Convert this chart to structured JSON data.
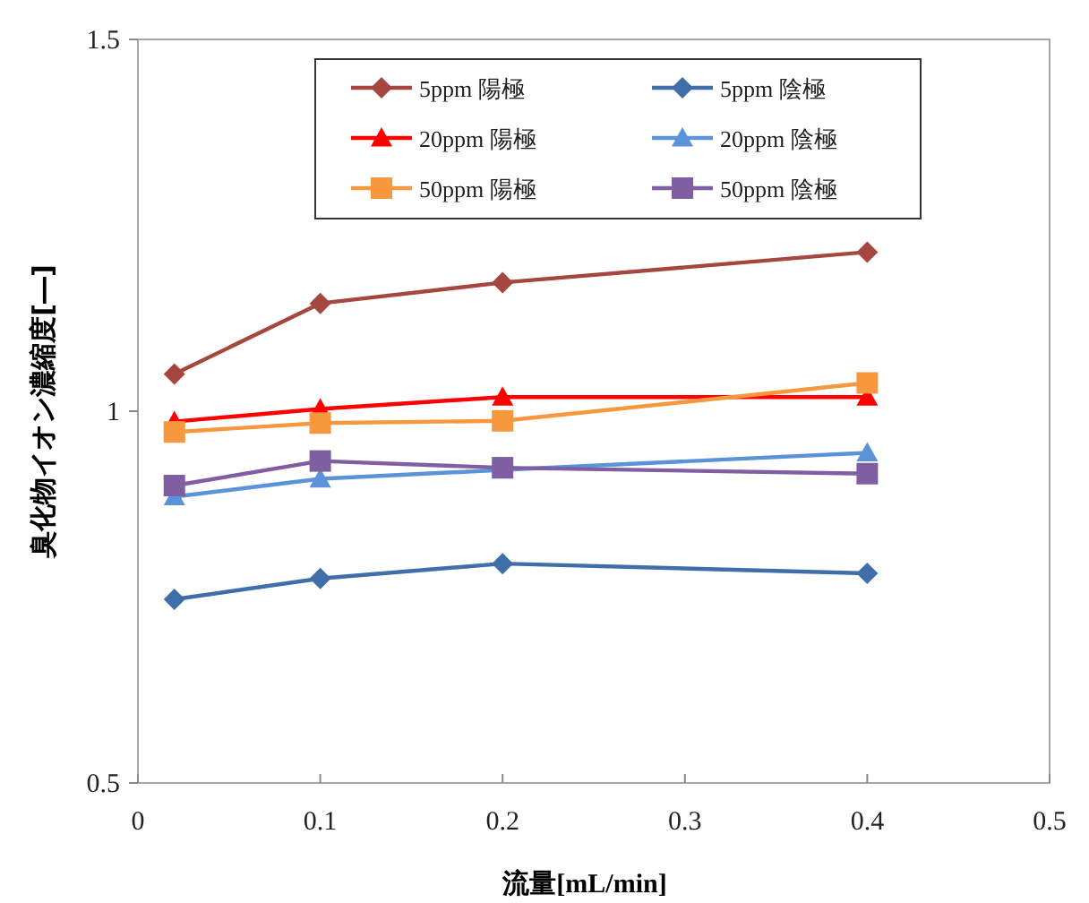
{
  "chart_data": {
    "type": "line",
    "xlabel": "流量[mL/min]",
    "ylabel": "臭化物イオン濃縮度[―]",
    "x": [
      0.02,
      0.1,
      0.2,
      0.4
    ],
    "xlim": [
      0,
      0.5
    ],
    "xticks": [
      0,
      0.1,
      0.2,
      0.3,
      0.4,
      0.5
    ],
    "ylim": [
      0.5,
      1.5
    ],
    "yticks": [
      0.5,
      1,
      1.5
    ],
    "grid": false,
    "legend": "top",
    "series": [
      {
        "name": "5ppm 陽極",
        "color": "#a5473f",
        "marker": "diamond",
        "values": [
          1.05,
          1.145,
          1.173,
          1.214
        ]
      },
      {
        "name": "5ppm 陰極",
        "color": "#3f6ea8",
        "marker": "diamond",
        "values": [
          0.747,
          0.775,
          0.795,
          0.782
        ]
      },
      {
        "name": "20ppm 陽極",
        "color": "#ff0000",
        "marker": "triangle",
        "values": [
          0.986,
          1.003,
          1.019,
          1.019
        ]
      },
      {
        "name": "20ppm 陰極",
        "color": "#5b93d8",
        "marker": "triangle",
        "values": [
          0.885,
          0.909,
          0.921,
          0.944
        ]
      },
      {
        "name": "50ppm 陽極",
        "color": "#f7983e",
        "marker": "square",
        "values": [
          0.972,
          0.984,
          0.987,
          1.038
        ]
      },
      {
        "name": "50ppm 陰極",
        "color": "#7f5fa2",
        "marker": "square",
        "values": [
          0.9,
          0.933,
          0.924,
          0.916
        ]
      }
    ]
  }
}
